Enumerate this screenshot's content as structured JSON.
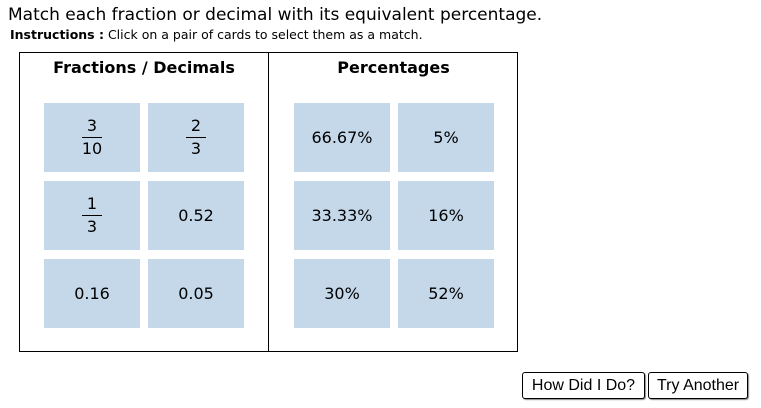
{
  "header": {
    "title": "Match each fraction or decimal with its equivalent percentage.",
    "instructions_label": "Instructions :",
    "instructions_text": " Click on a pair of cards to select them as a match."
  },
  "left_column": {
    "heading": "Fractions / Decimals",
    "cards": [
      {
        "kind": "fraction",
        "numerator": "3",
        "denominator": "10"
      },
      {
        "kind": "fraction",
        "numerator": "2",
        "denominator": "3"
      },
      {
        "kind": "fraction",
        "numerator": "1",
        "denominator": "3"
      },
      {
        "kind": "text",
        "value": "0.52"
      },
      {
        "kind": "text",
        "value": "0.16"
      },
      {
        "kind": "text",
        "value": "0.05"
      }
    ]
  },
  "right_column": {
    "heading": "Percentages",
    "cards": [
      {
        "value": "66.67%"
      },
      {
        "value": "5%"
      },
      {
        "value": "33.33%"
      },
      {
        "value": "16%"
      },
      {
        "value": "30%"
      },
      {
        "value": "52%"
      }
    ]
  },
  "buttons": {
    "check_label": "How Did I Do?",
    "another_label": "Try Another"
  },
  "colors": {
    "card_background": "#c4d8ea"
  }
}
